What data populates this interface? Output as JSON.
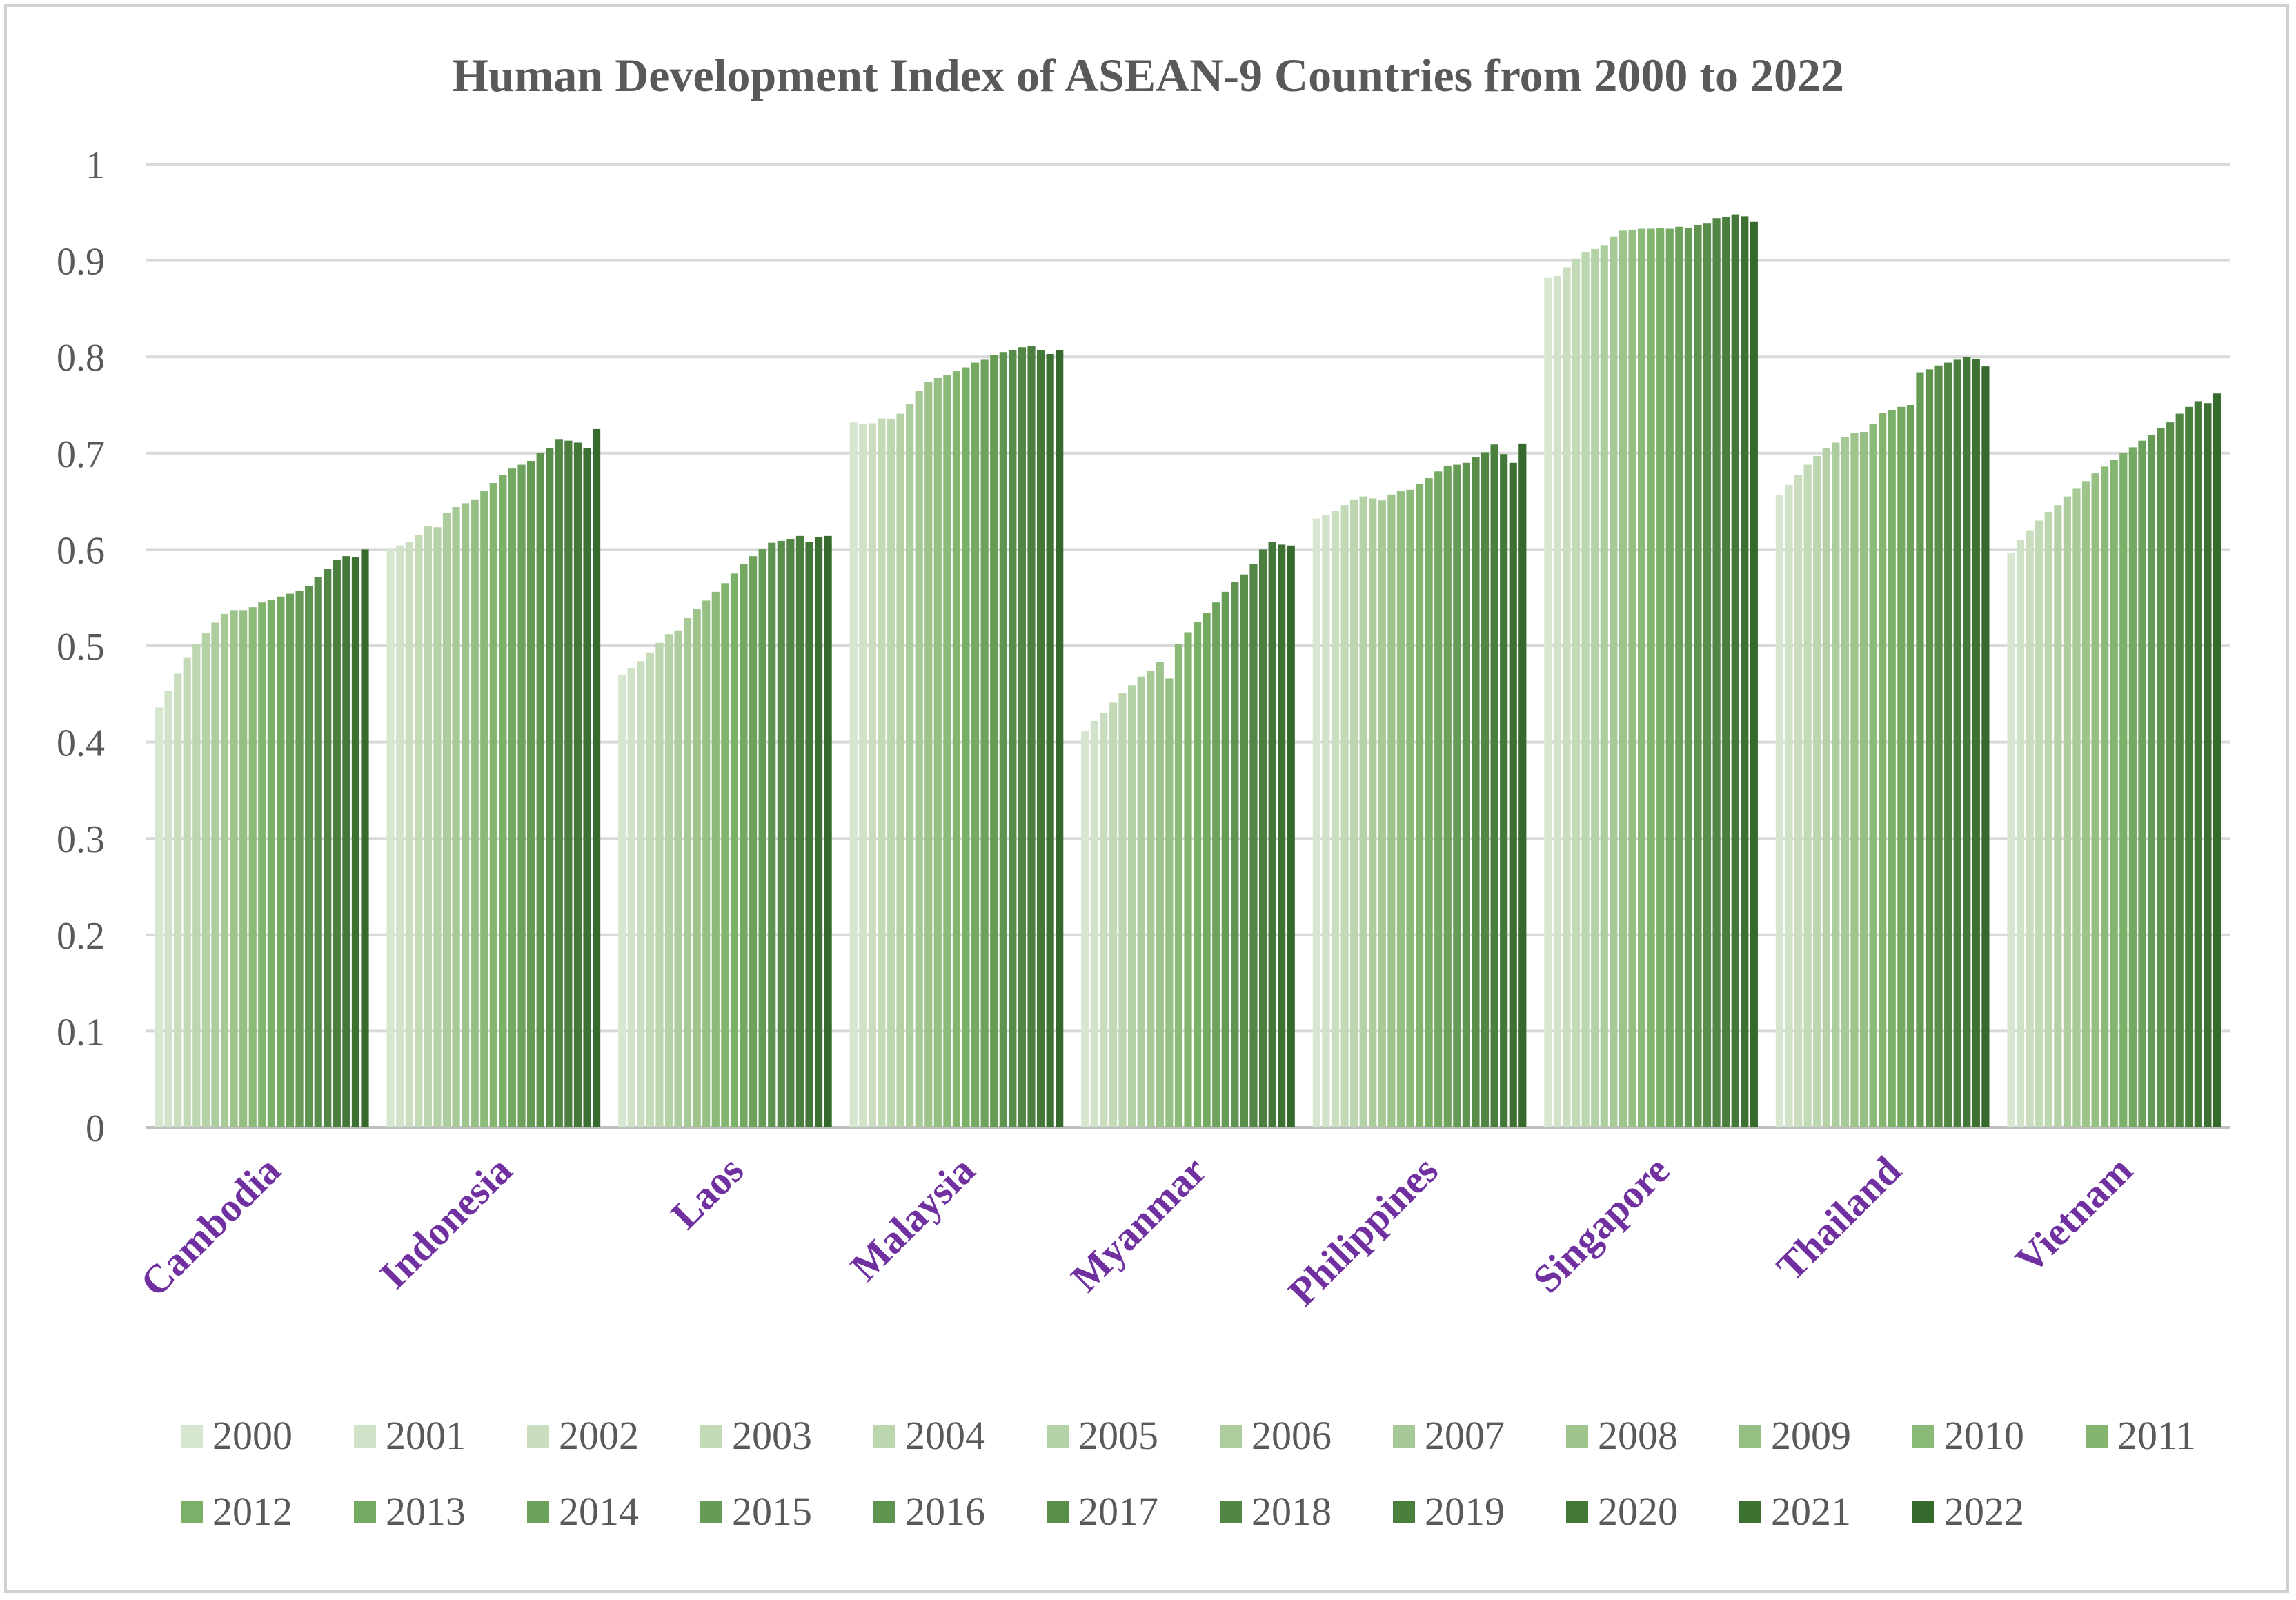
{
  "chart_data": {
    "type": "bar",
    "title": "Human Development Index of ASEAN-9 Countries from 2000 to 2022",
    "xlabel": "",
    "ylabel": "",
    "ylim": [
      0,
      1
    ],
    "yticks": [
      "0",
      "0.1",
      "0.2",
      "0.3",
      "0.4",
      "0.5",
      "0.6",
      "0.7",
      "0.8",
      "0.9",
      "1"
    ],
    "grid": true,
    "legend_position": "bottom",
    "categories": [
      "Cambodia",
      "Indonesia",
      "Laos",
      "Malaysia",
      "Myanmar",
      "Philippines",
      "Singapore",
      "Thailand",
      "Vietnam"
    ],
    "series": [
      {
        "name": "2000",
        "color": "#d6e6cf",
        "values": [
          0.436,
          0.6,
          0.47,
          0.732,
          0.412,
          0.632,
          0.882,
          0.657,
          0.596
        ]
      },
      {
        "name": "2001",
        "color": "#d0e2c7",
        "values": [
          0.453,
          0.604,
          0.477,
          0.73,
          0.422,
          0.636,
          0.884,
          0.667,
          0.61
        ]
      },
      {
        "name": "2002",
        "color": "#cadebf",
        "values": [
          0.471,
          0.608,
          0.484,
          0.731,
          0.43,
          0.64,
          0.893,
          0.677,
          0.62
        ]
      },
      {
        "name": "2003",
        "color": "#c3dab7",
        "values": [
          0.488,
          0.615,
          0.493,
          0.736,
          0.441,
          0.646,
          0.902,
          0.688,
          0.63
        ]
      },
      {
        "name": "2004",
        "color": "#bcd6af",
        "values": [
          0.502,
          0.624,
          0.503,
          0.735,
          0.451,
          0.652,
          0.909,
          0.697,
          0.639
        ]
      },
      {
        "name": "2005",
        "color": "#b5d2a6",
        "values": [
          0.513,
          0.623,
          0.512,
          0.741,
          0.459,
          0.655,
          0.912,
          0.705,
          0.646
        ]
      },
      {
        "name": "2006",
        "color": "#aecd9e",
        "values": [
          0.524,
          0.638,
          0.516,
          0.751,
          0.468,
          0.653,
          0.916,
          0.711,
          0.655
        ]
      },
      {
        "name": "2007",
        "color": "#a6c995",
        "values": [
          0.533,
          0.644,
          0.529,
          0.765,
          0.474,
          0.651,
          0.925,
          0.717,
          0.663
        ]
      },
      {
        "name": "2008",
        "color": "#9ec48c",
        "values": [
          0.537,
          0.648,
          0.538,
          0.774,
          0.483,
          0.657,
          0.931,
          0.721,
          0.671
        ]
      },
      {
        "name": "2009",
        "color": "#95bf83",
        "values": [
          0.537,
          0.652,
          0.547,
          0.778,
          0.466,
          0.661,
          0.932,
          0.722,
          0.679
        ]
      },
      {
        "name": "2010",
        "color": "#8cba79",
        "values": [
          0.54,
          0.661,
          0.556,
          0.781,
          0.502,
          0.662,
          0.933,
          0.73,
          0.686
        ]
      },
      {
        "name": "2011",
        "color": "#83b56f",
        "values": [
          0.545,
          0.669,
          0.565,
          0.785,
          0.514,
          0.668,
          0.933,
          0.742,
          0.693
        ]
      },
      {
        "name": "2012",
        "color": "#7bb068",
        "values": [
          0.548,
          0.677,
          0.575,
          0.789,
          0.525,
          0.674,
          0.934,
          0.745,
          0.7
        ]
      },
      {
        "name": "2013",
        "color": "#74a962",
        "values": [
          0.551,
          0.684,
          0.585,
          0.794,
          0.534,
          0.681,
          0.933,
          0.748,
          0.706
        ]
      },
      {
        "name": "2014",
        "color": "#6da25c",
        "values": [
          0.554,
          0.688,
          0.593,
          0.797,
          0.545,
          0.687,
          0.935,
          0.75,
          0.713
        ]
      },
      {
        "name": "2015",
        "color": "#669b56",
        "values": [
          0.557,
          0.692,
          0.601,
          0.802,
          0.556,
          0.688,
          0.934,
          0.784,
          0.719
        ]
      },
      {
        "name": "2016",
        "color": "#5f9450",
        "values": [
          0.562,
          0.7,
          0.607,
          0.805,
          0.566,
          0.69,
          0.937,
          0.787,
          0.726
        ]
      },
      {
        "name": "2017",
        "color": "#588d4a",
        "values": [
          0.571,
          0.705,
          0.609,
          0.807,
          0.574,
          0.696,
          0.939,
          0.791,
          0.732
        ]
      },
      {
        "name": "2018",
        "color": "#518644",
        "values": [
          0.58,
          0.714,
          0.611,
          0.81,
          0.585,
          0.701,
          0.944,
          0.794,
          0.741
        ]
      },
      {
        "name": "2019",
        "color": "#4a7f3e",
        "values": [
          0.589,
          0.713,
          0.614,
          0.811,
          0.6,
          0.709,
          0.945,
          0.797,
          0.748
        ]
      },
      {
        "name": "2020",
        "color": "#437838",
        "values": [
          0.593,
          0.711,
          0.608,
          0.807,
          0.608,
          0.699,
          0.948,
          0.8,
          0.754
        ]
      },
      {
        "name": "2021",
        "color": "#3c7132",
        "values": [
          0.592,
          0.705,
          0.613,
          0.803,
          0.605,
          0.69,
          0.946,
          0.798,
          0.752
        ]
      },
      {
        "name": "2022",
        "color": "#356a2c",
        "values": [
          0.6,
          0.725,
          0.614,
          0.807,
          0.604,
          0.71,
          0.94,
          0.79,
          0.762
        ]
      }
    ]
  }
}
